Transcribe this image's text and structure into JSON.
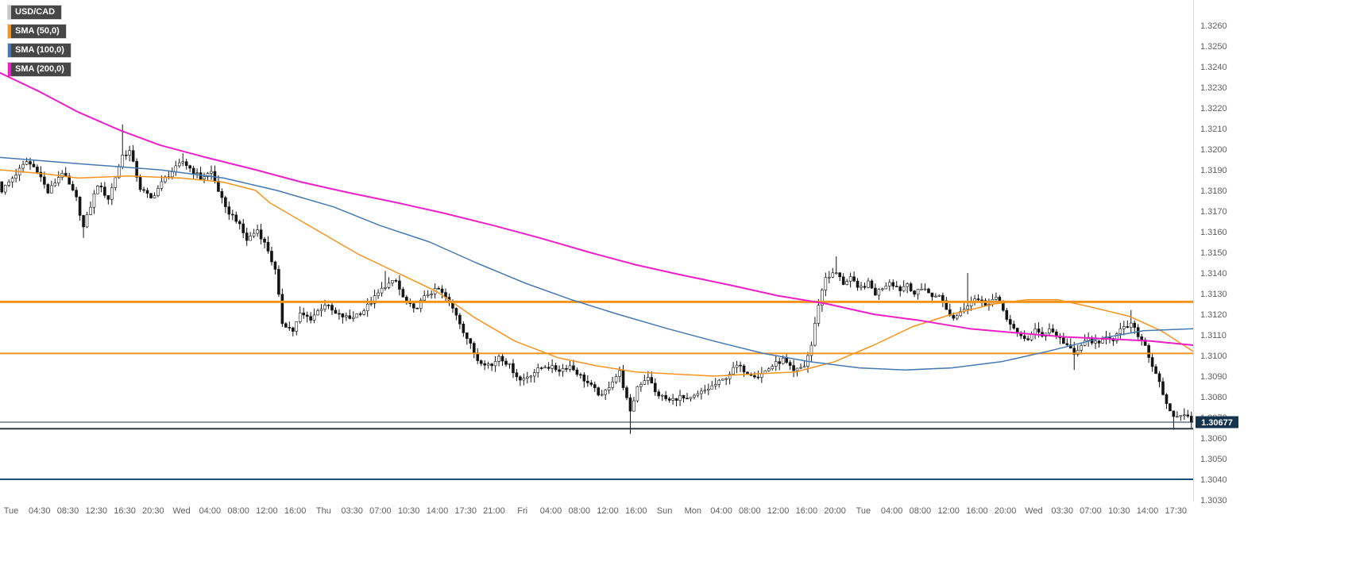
{
  "legend": {
    "symbol": "USD/CAD",
    "symbol_strip_color": "#c8c8c8",
    "indicators": [
      {
        "label": "SMA (50,0)",
        "color": "#f7941d"
      },
      {
        "label": "SMA (100,0)",
        "color": "#4579b2"
      },
      {
        "label": "SMA (200,0)",
        "color": "#ee1fc8"
      }
    ]
  },
  "chart_data": {
    "type": "candlestick",
    "symbol": "USD/CAD",
    "interval_minutes": 30,
    "current_price": 1.30677,
    "current_price_label": "1.30677",
    "y_axis": {
      "min": 1.303,
      "max": 1.326,
      "step": 0.001,
      "labels": [
        "1.3260",
        "1.3250",
        "1.3240",
        "1.3230",
        "1.3220",
        "1.3210",
        "1.3200",
        "1.3190",
        "1.3180",
        "1.3170",
        "1.3160",
        "1.3150",
        "1.3140",
        "1.3130",
        "1.3120",
        "1.3110",
        "1.3100",
        "1.3090",
        "1.3080",
        "1.3070",
        "1.3060",
        "1.3050",
        "1.3040",
        "1.3030"
      ]
    },
    "x_labels": [
      "Tue",
      "04:30",
      "08:30",
      "12:30",
      "16:30",
      "20:30",
      "Wed",
      "04:00",
      "08:00",
      "12:00",
      "16:00",
      "Thu",
      "03:30",
      "07:00",
      "10:30",
      "14:00",
      "17:30",
      "21:00",
      "Fri",
      "04:00",
      "08:00",
      "12:00",
      "16:00",
      "Sun",
      "Mon",
      "04:00",
      "08:00",
      "12:00",
      "16:00",
      "20:00",
      "Tue",
      "04:00",
      "08:00",
      "12:00",
      "16:00",
      "20:00",
      "Wed",
      "03:30",
      "07:00",
      "10:30",
      "14:00",
      "17:30"
    ],
    "candles_per_label": 8,
    "price_path": [
      [
        0,
        1.318
      ],
      [
        7,
        1.3194
      ],
      [
        10,
        1.319
      ],
      [
        13,
        1.3179
      ],
      [
        17,
        1.3189
      ],
      [
        21,
        1.3176
      ],
      [
        23,
        1.3162
      ],
      [
        27,
        1.3183
      ],
      [
        30,
        1.3176
      ],
      [
        34,
        1.3197
      ],
      [
        36,
        1.3199
      ],
      [
        39,
        1.3181
      ],
      [
        42,
        1.3176
      ],
      [
        46,
        1.3186
      ],
      [
        51,
        1.3194
      ],
      [
        56,
        1.3186
      ],
      [
        59,
        1.3189
      ],
      [
        63,
        1.3171
      ],
      [
        66,
        1.3166
      ],
      [
        69,
        1.3156
      ],
      [
        72,
        1.3161
      ],
      [
        75,
        1.3151
      ],
      [
        77,
        1.3141
      ],
      [
        79,
        1.3116
      ],
      [
        82,
        1.3112
      ],
      [
        84,
        1.312
      ],
      [
        87,
        1.3118
      ],
      [
        91,
        1.3125
      ],
      [
        94,
        1.312
      ],
      [
        98,
        1.3118
      ],
      [
        102,
        1.3122
      ],
      [
        105,
        1.3128
      ],
      [
        108,
        1.3134
      ],
      [
        111,
        1.3136
      ],
      [
        113,
        1.3128
      ],
      [
        116,
        1.3122
      ],
      [
        120,
        1.313
      ],
      [
        123,
        1.3132
      ],
      [
        125,
        1.3128
      ],
      [
        128,
        1.312
      ],
      [
        130,
        1.3112
      ],
      [
        132,
        1.3105
      ],
      [
        134,
        1.3098
      ],
      [
        138,
        1.3095
      ],
      [
        140,
        1.31
      ],
      [
        143,
        1.3095
      ],
      [
        146,
        1.3088
      ],
      [
        150,
        1.3092
      ],
      [
        153,
        1.3095
      ],
      [
        157,
        1.3093
      ],
      [
        160,
        1.3095
      ],
      [
        163,
        1.309
      ],
      [
        166,
        1.3085
      ],
      [
        169,
        1.308
      ],
      [
        172,
        1.3088
      ],
      [
        174,
        1.3092
      ],
      [
        177,
        1.3072
      ],
      [
        179,
        1.3085
      ],
      [
        182,
        1.309
      ],
      [
        184,
        1.3082
      ],
      [
        188,
        1.3078
      ],
      [
        191,
        1.308
      ],
      [
        193,
        1.3078
      ],
      [
        197,
        1.3082
      ],
      [
        200,
        1.3085
      ],
      [
        203,
        1.3088
      ],
      [
        207,
        1.3095
      ],
      [
        210,
        1.3092
      ],
      [
        213,
        1.309
      ],
      [
        217,
        1.3095
      ],
      [
        220,
        1.3098
      ],
      [
        223,
        1.3092
      ],
      [
        226,
        1.3095
      ],
      [
        228,
        1.3105
      ],
      [
        230,
        1.3125
      ],
      [
        232,
        1.3138
      ],
      [
        235,
        1.314
      ],
      [
        237,
        1.3135
      ],
      [
        239,
        1.3138
      ],
      [
        241,
        1.3132
      ],
      [
        244,
        1.3135
      ],
      [
        246,
        1.313
      ],
      [
        248,
        1.3133
      ],
      [
        250,
        1.3136
      ],
      [
        253,
        1.3132
      ],
      [
        255,
        1.3135
      ],
      [
        257,
        1.313
      ],
      [
        260,
        1.3133
      ],
      [
        262,
        1.3128
      ],
      [
        264,
        1.313
      ],
      [
        266,
        1.3122
      ],
      [
        268,
        1.3118
      ],
      [
        272,
        1.3125
      ],
      [
        274,
        1.3128
      ],
      [
        277,
        1.3125
      ],
      [
        280,
        1.3128
      ],
      [
        282,
        1.3122
      ],
      [
        284,
        1.3115
      ],
      [
        286,
        1.311
      ],
      [
        289,
        1.3108
      ],
      [
        291,
        1.3112
      ],
      [
        293,
        1.311
      ],
      [
        295,
        1.3113
      ],
      [
        298,
        1.3108
      ],
      [
        300,
        1.3105
      ],
      [
        302,
        1.31
      ],
      [
        304,
        1.3105
      ],
      [
        306,
        1.3108
      ],
      [
        309,
        1.3105
      ],
      [
        311,
        1.311
      ],
      [
        313,
        1.3108
      ],
      [
        315,
        1.3112
      ],
      [
        318,
        1.3115
      ],
      [
        320,
        1.311
      ],
      [
        322,
        1.3105
      ],
      [
        324,
        1.3095
      ],
      [
        326,
        1.3088
      ],
      [
        327,
        1.308
      ],
      [
        329,
        1.3072
      ],
      [
        331,
        1.307
      ],
      [
        333,
        1.3072
      ],
      [
        335,
        1.30677
      ]
    ],
    "spikes": [
      {
        "i": 23,
        "l": 1.3157
      },
      {
        "i": 34,
        "h": 1.3212
      },
      {
        "i": 51,
        "h": 1.3198
      },
      {
        "i": 108,
        "h": 1.3141
      },
      {
        "i": 177,
        "l": 1.3062
      },
      {
        "i": 235,
        "h": 1.3148
      },
      {
        "i": 272,
        "h": 1.314
      },
      {
        "i": 302,
        "l": 1.3093
      },
      {
        "i": 318,
        "h": 1.3122
      },
      {
        "i": 330,
        "l": 1.3064
      }
    ],
    "horizontal_lines": [
      {
        "name": "resistance-upper",
        "price": 1.3126,
        "color": "#f7941d",
        "width": 3
      },
      {
        "name": "resistance-lower",
        "price": 1.3101,
        "color": "#f7941d",
        "width": 2
      },
      {
        "name": "current-price-line",
        "price": 1.30677,
        "color": "#14334d",
        "width": 1
      },
      {
        "name": "support-upper",
        "price": 1.30645,
        "color": "#2a3a4a",
        "width": 2
      },
      {
        "name": "support-lower",
        "price": 1.304,
        "color": "#1d4f7c",
        "width": 2
      }
    ],
    "sma_lines": [
      {
        "period": 50,
        "color": "#f7941d",
        "width": 1.5,
        "points": [
          [
            0,
            1.319
          ],
          [
            13,
            1.3188
          ],
          [
            22,
            1.3186
          ],
          [
            36,
            1.3187
          ],
          [
            51,
            1.3186
          ],
          [
            63,
            1.3184
          ],
          [
            72,
            1.318
          ],
          [
            76,
            1.3174
          ],
          [
            90,
            1.316
          ],
          [
            101,
            1.3149
          ],
          [
            112,
            1.314
          ],
          [
            123,
            1.3131
          ],
          [
            134,
            1.3118
          ],
          [
            145,
            1.3107
          ],
          [
            157,
            1.3099
          ],
          [
            168,
            1.3095
          ],
          [
            179,
            1.3092
          ],
          [
            190,
            1.3091
          ],
          [
            201,
            1.309
          ],
          [
            212,
            1.3091
          ],
          [
            224,
            1.3092
          ],
          [
            235,
            1.3097
          ],
          [
            246,
            1.3105
          ],
          [
            257,
            1.3114
          ],
          [
            268,
            1.312
          ],
          [
            280,
            1.3125
          ],
          [
            289,
            1.3127
          ],
          [
            298,
            1.3127
          ],
          [
            306,
            1.3124
          ],
          [
            318,
            1.3119
          ],
          [
            327,
            1.3112
          ],
          [
            336,
            1.3102
          ]
        ]
      },
      {
        "period": 100,
        "color": "#4579b2",
        "width": 1.5,
        "points": [
          [
            0,
            1.3196
          ],
          [
            22,
            1.3193
          ],
          [
            45,
            1.319
          ],
          [
            63,
            1.3186
          ],
          [
            78,
            1.318
          ],
          [
            94,
            1.3172
          ],
          [
            107,
            1.3163
          ],
          [
            121,
            1.3155
          ],
          [
            134,
            1.3145
          ],
          [
            148,
            1.3135
          ],
          [
            161,
            1.3127
          ],
          [
            174,
            1.312
          ],
          [
            188,
            1.3113
          ],
          [
            201,
            1.3107
          ],
          [
            215,
            1.3101
          ],
          [
            228,
            1.3097
          ],
          [
            242,
            1.3094
          ],
          [
            255,
            1.3093
          ],
          [
            268,
            1.3094
          ],
          [
            282,
            1.3097
          ],
          [
            295,
            1.3102
          ],
          [
            309,
            1.3108
          ],
          [
            322,
            1.3112
          ],
          [
            336,
            1.3113
          ]
        ]
      },
      {
        "period": 200,
        "color": "#ee1fc8",
        "width": 2,
        "points": [
          [
            0,
            1.3237
          ],
          [
            11,
            1.3228
          ],
          [
            22,
            1.3218
          ],
          [
            34,
            1.3209
          ],
          [
            45,
            1.3202
          ],
          [
            58,
            1.3196
          ],
          [
            72,
            1.319
          ],
          [
            85,
            1.3184
          ],
          [
            98,
            1.3179
          ],
          [
            112,
            1.3174
          ],
          [
            125,
            1.3169
          ],
          [
            139,
            1.3163
          ],
          [
            152,
            1.3157
          ],
          [
            166,
            1.315
          ],
          [
            179,
            1.3144
          ],
          [
            192,
            1.3139
          ],
          [
            206,
            1.3134
          ],
          [
            219,
            1.3129
          ],
          [
            233,
            1.3125
          ],
          [
            246,
            1.312
          ],
          [
            259,
            1.3117
          ],
          [
            273,
            1.3113
          ],
          [
            286,
            1.3111
          ],
          [
            300,
            1.3109
          ],
          [
            313,
            1.3108
          ],
          [
            324,
            1.3107
          ],
          [
            336,
            1.3105
          ]
        ]
      }
    ],
    "colors": {
      "candle_down": "#141414",
      "candle_up": "#ffffff",
      "candle_border": "#141414",
      "axis_text": "#5f5f5f",
      "axis_line": "#dddddd",
      "price_tag_bg": "#14334d",
      "price_tag_text": "#ffffff"
    }
  }
}
